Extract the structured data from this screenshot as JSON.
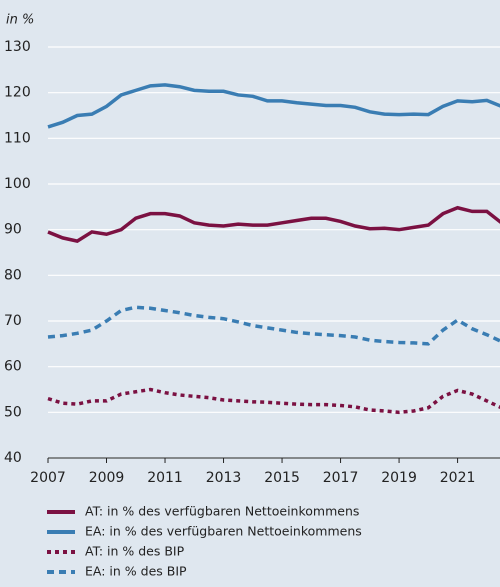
{
  "chart_data": {
    "type": "line",
    "y_label": "in %",
    "x": [
      2007,
      2007.5,
      2008,
      2008.5,
      2009,
      2009.5,
      2010,
      2010.5,
      2011,
      2011.5,
      2012,
      2012.5,
      2013,
      2013.5,
      2014,
      2014.5,
      2015,
      2015.5,
      2016,
      2016.5,
      2017,
      2017.5,
      2018,
      2018.5,
      2019,
      2019.5,
      2020,
      2020.5,
      2021,
      2021.5,
      2022,
      2022.5
    ],
    "xlim": [
      2007,
      2022.45
    ],
    "xticks": [
      2007,
      2009,
      2011,
      2013,
      2015,
      2017,
      2019,
      2021
    ],
    "ylim": [
      40,
      130
    ],
    "yticks": [
      40,
      50,
      60,
      70,
      80,
      90,
      100,
      110,
      120,
      130
    ],
    "grid": true,
    "series": [
      {
        "name": "AT: in % des verfügbaren Nettoeinkommens",
        "color": "#7b1142",
        "style": "solid",
        "values": [
          89.5,
          88.2,
          87.5,
          89.5,
          89,
          90,
          92.5,
          93.5,
          93.5,
          93,
          91.5,
          91,
          90.8,
          91.2,
          91,
          91,
          91.5,
          92,
          92.5,
          92.5,
          91.8,
          90.8,
          90.2,
          90.3,
          90,
          90.5,
          91,
          93.5,
          94.8,
          94,
          94,
          91.5
        ]
      },
      {
        "name": "EA: in % des verfügbaren Nettoeinkommens",
        "color": "#3a7db3",
        "style": "solid",
        "values": [
          112.5,
          113.5,
          115,
          115.3,
          117,
          119.5,
          120.5,
          121.5,
          121.7,
          121.3,
          120.5,
          120.3,
          120.3,
          119.5,
          119.2,
          118.2,
          118.2,
          117.8,
          117.5,
          117.2,
          117.2,
          116.8,
          115.8,
          115.3,
          115.2,
          115.3,
          115.2,
          117,
          118.2,
          118,
          118.3,
          117
        ]
      },
      {
        "name": "AT: in % des BIP",
        "color": "#7b1142",
        "style": "dotted",
        "values": [
          53,
          52,
          51.8,
          52.5,
          52.5,
          54,
          54.5,
          55,
          54.3,
          53.8,
          53.5,
          53.2,
          52.7,
          52.5,
          52.3,
          52.2,
          52,
          51.8,
          51.7,
          51.7,
          51.5,
          51.2,
          50.5,
          50.3,
          50,
          50.3,
          51,
          53.5,
          54.8,
          54,
          52.5,
          51
        ]
      },
      {
        "name": "EA: in % des BIP",
        "color": "#3a7db3",
        "style": "dashed",
        "values": [
          66.5,
          66.8,
          67.3,
          68,
          70,
          72.3,
          73,
          72.8,
          72.3,
          71.8,
          71.2,
          70.8,
          70.5,
          69.8,
          69,
          68.5,
          68,
          67.5,
          67.2,
          67,
          66.8,
          66.5,
          65.8,
          65.5,
          65.3,
          65.2,
          65,
          68,
          70.2,
          68.3,
          67,
          65.5
        ]
      }
    ]
  }
}
